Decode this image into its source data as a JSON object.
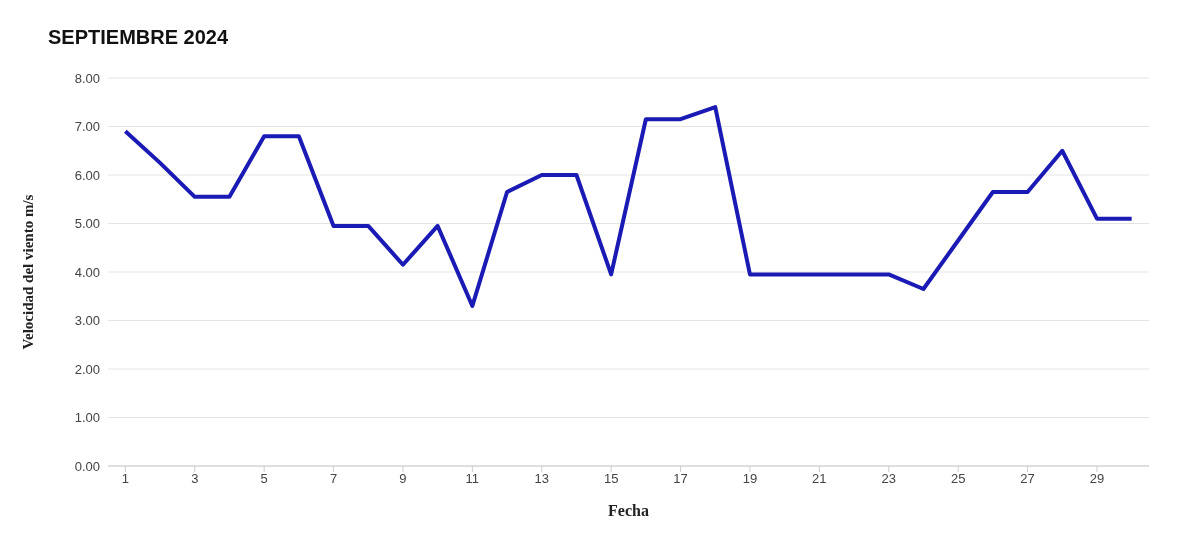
{
  "chart_data": {
    "type": "line",
    "title": "SEPTIEMBRE 2024",
    "xlabel": "Fecha",
    "ylabel": "Velocidad del viento m/s",
    "x": [
      1,
      2,
      3,
      4,
      5,
      6,
      7,
      8,
      9,
      10,
      11,
      12,
      13,
      14,
      15,
      16,
      17,
      18,
      19,
      20,
      21,
      22,
      23,
      24,
      25,
      26,
      27,
      28,
      29,
      30
    ],
    "xlim": [
      0.5,
      30.5
    ],
    "xticks": [
      1,
      3,
      5,
      7,
      9,
      11,
      13,
      15,
      17,
      19,
      21,
      23,
      25,
      27,
      29
    ],
    "series": [
      {
        "color": "#1a1ab4",
        "values": [
          6.9,
          6.25,
          5.55,
          5.55,
          6.8,
          6.8,
          4.95,
          4.95,
          4.15,
          4.95,
          3.3,
          5.65,
          6.0,
          6.0,
          3.95,
          7.15,
          7.15,
          7.4,
          3.95,
          3.95,
          3.95,
          3.95,
          3.95,
          3.65,
          4.65,
          5.65,
          5.65,
          6.5,
          5.1,
          5.1
        ]
      }
    ],
    "ylim": [
      0,
      8
    ],
    "yticks": [
      {
        "value": 0,
        "label": "0.00"
      },
      {
        "value": 1,
        "label": "1.00"
      },
      {
        "value": 2,
        "label": "2.00"
      },
      {
        "value": 3,
        "label": "3.00"
      },
      {
        "value": 4,
        "label": "4.00"
      },
      {
        "value": 5,
        "label": "5.00"
      },
      {
        "value": 6,
        "label": "6.00"
      },
      {
        "value": 7,
        "label": "7.00"
      },
      {
        "value": 8,
        "label": "8.00"
      }
    ],
    "grid": "y",
    "marker": "none",
    "line_style": "solid",
    "legend": false
  }
}
